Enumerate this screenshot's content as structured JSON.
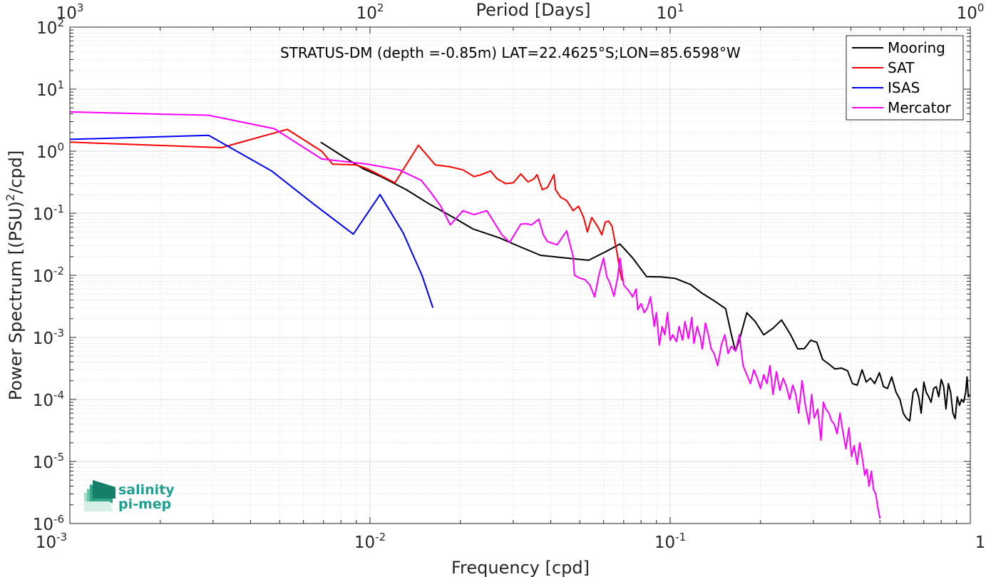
{
  "chart_data": {
    "type": "line",
    "scale": {
      "x": "log",
      "y": "log"
    },
    "xlabel": "Frequency [cpd]",
    "ylabel": "Power Spectrum [(PSU)²/cpd]",
    "ylabel_parts": {
      "pre": "Power Spectrum [(PSU)",
      "sup": "2",
      "post": "/cpd]"
    },
    "top_xlabel": "Period [Days]",
    "xlim": [
      0.001,
      1
    ],
    "ylim": [
      1e-06,
      100
    ],
    "grid": true,
    "minor_grid": true,
    "legend_position": "top-right",
    "annotation": "STRATUS-DM (depth =-0.85m) LAT=22.4625°S;LON=85.6598°W",
    "x_ticks": [
      {
        "value": 0.001,
        "base": "10",
        "exp": "-3"
      },
      {
        "value": 0.01,
        "base": "10",
        "exp": "-2"
      },
      {
        "value": 0.1,
        "base": "10",
        "exp": "-1"
      },
      {
        "value": 1,
        "base": "10",
        "exp": "0"
      }
    ],
    "top_ticks": [
      {
        "value": 0.001,
        "base": "10",
        "exp": "3"
      },
      {
        "value": 0.01,
        "base": "10",
        "exp": "2"
      },
      {
        "value": 0.1,
        "base": "10",
        "exp": "1"
      },
      {
        "value": 1,
        "base": "10",
        "exp": "0"
      }
    ],
    "y_ticks": [
      {
        "value": 100,
        "base": "10",
        "exp": "2"
      },
      {
        "value": 10,
        "base": "10",
        "exp": "1"
      },
      {
        "value": 1,
        "base": "10",
        "exp": "0"
      },
      {
        "value": 0.1,
        "base": "10",
        "exp": "-1"
      },
      {
        "value": 0.01,
        "base": "10",
        "exp": "-2"
      },
      {
        "value": 0.001,
        "base": "10",
        "exp": "-3"
      },
      {
        "value": 0.0001,
        "base": "10",
        "exp": "-4"
      },
      {
        "value": 1e-05,
        "base": "10",
        "exp": "-5"
      },
      {
        "value": 1e-06,
        "base": "10",
        "exp": "-6"
      }
    ],
    "series": [
      {
        "name": "Mooring",
        "color": "#000000",
        "points": [
          [
            0.00685,
            1.4
          ],
          [
            0.0082,
            0.8
          ],
          [
            0.0095,
            0.52
          ],
          [
            0.011,
            0.38
          ],
          [
            0.0132,
            0.24
          ],
          [
            0.0158,
            0.14
          ],
          [
            0.019,
            0.085
          ],
          [
            0.022,
            0.056
          ],
          [
            0.027,
            0.04
          ],
          [
            0.031,
            0.03
          ],
          [
            0.037,
            0.021
          ],
          [
            0.045,
            0.019
          ],
          [
            0.0535,
            0.0175
          ],
          [
            0.061,
            0.024
          ],
          [
            0.068,
            0.032
          ],
          [
            0.075,
            0.019
          ],
          [
            0.0835,
            0.0095
          ],
          [
            0.0935,
            0.0094
          ],
          [
            0.104,
            0.0089
          ],
          [
            0.117,
            0.0071
          ],
          [
            0.128,
            0.0051
          ],
          [
            0.14,
            0.0039
          ],
          [
            0.153,
            0.0029
          ],
          [
            0.16,
            0.0011
          ],
          [
            0.165,
            0.0006
          ],
          [
            0.17,
            0.0009
          ],
          [
            0.18,
            0.0025
          ],
          [
            0.192,
            0.0018
          ],
          [
            0.205,
            0.0011
          ],
          [
            0.22,
            0.0014
          ],
          [
            0.235,
            0.0019
          ],
          [
            0.252,
            0.0011
          ],
          [
            0.266,
            0.00065
          ],
          [
            0.28,
            0.00066
          ],
          [
            0.294,
            0.0009
          ],
          [
            0.308,
            0.00083
          ],
          [
            0.322,
            0.00044
          ],
          [
            0.338,
            0.00037
          ],
          [
            0.354,
            0.00031
          ],
          [
            0.372,
            0.00032
          ],
          [
            0.39,
            0.00029
          ],
          [
            0.405,
            0.00018
          ],
          [
            0.42,
            0.00017
          ],
          [
            0.436,
            0.0003
          ],
          [
            0.45,
            0.00019
          ],
          [
            0.465,
            0.00022
          ],
          [
            0.48,
            0.00018
          ],
          [
            0.498,
            0.00027
          ],
          [
            0.514,
            0.00016
          ],
          [
            0.53,
            0.00015
          ],
          [
            0.547,
            0.00023
          ],
          [
            0.566,
            0.00013
          ],
          [
            0.583,
            0.0001
          ],
          [
            0.598,
            6e-05
          ],
          [
            0.612,
            5e-05
          ],
          [
            0.628,
            4.5e-05
          ],
          [
            0.645,
            0.00013
          ],
          [
            0.66,
            0.00015
          ],
          [
            0.673,
            0.00011
          ],
          [
            0.686,
            6e-05
          ],
          [
            0.7,
            0.00019
          ],
          [
            0.713,
            0.00013
          ],
          [
            0.727,
            0.00011
          ],
          [
            0.74,
            9e-05
          ],
          [
            0.755,
            0.00015
          ],
          [
            0.77,
            0.00016
          ],
          [
            0.785,
            0.00011
          ],
          [
            0.8,
            0.00021
          ],
          [
            0.815,
            0.00016
          ],
          [
            0.83,
            7e-05
          ],
          [
            0.845,
            0.00018
          ],
          [
            0.86,
            0.00013
          ],
          [
            0.875,
            6e-05
          ],
          [
            0.89,
            4.9e-05
          ],
          [
            0.905,
            0.00011
          ],
          [
            0.92,
            8e-05
          ],
          [
            0.935,
            0.0001
          ],
          [
            0.95,
            9e-05
          ],
          [
            0.965,
            0.00013
          ],
          [
            0.975,
            0.00023
          ],
          [
            0.985,
            0.00011
          ],
          [
            1.0,
            0.00012
          ]
        ]
      },
      {
        "name": "SAT",
        "color": "#ff0000",
        "points": [
          [
            0.001,
            1.4
          ],
          [
            0.0032,
            1.14
          ],
          [
            0.0053,
            2.25
          ],
          [
            0.0069,
            1.0
          ],
          [
            0.0075,
            0.62
          ],
          [
            0.009,
            0.6
          ],
          [
            0.0098,
            0.52
          ],
          [
            0.0121,
            0.31
          ],
          [
            0.0138,
            0.85
          ],
          [
            0.0145,
            1.25
          ],
          [
            0.0165,
            0.6
          ],
          [
            0.0185,
            0.56
          ],
          [
            0.0204,
            0.5
          ],
          [
            0.0222,
            0.39
          ],
          [
            0.0235,
            0.42
          ],
          [
            0.0252,
            0.48
          ],
          [
            0.0265,
            0.36
          ],
          [
            0.0283,
            0.3
          ],
          [
            0.03,
            0.31
          ],
          [
            0.0318,
            0.43
          ],
          [
            0.0336,
            0.32
          ],
          [
            0.0352,
            0.36
          ],
          [
            0.036,
            0.42
          ],
          [
            0.0375,
            0.24
          ],
          [
            0.039,
            0.26
          ],
          [
            0.041,
            0.42
          ],
          [
            0.0415,
            0.24
          ],
          [
            0.0432,
            0.18
          ],
          [
            0.0452,
            0.16
          ],
          [
            0.0475,
            0.11
          ],
          [
            0.0495,
            0.13
          ],
          [
            0.0515,
            0.085
          ],
          [
            0.053,
            0.05
          ],
          [
            0.0548,
            0.085
          ],
          [
            0.0575,
            0.06
          ],
          [
            0.0592,
            0.045
          ],
          [
            0.0608,
            0.072
          ],
          [
            0.0623,
            0.075
          ],
          [
            0.064,
            0.062
          ],
          [
            0.0663,
            0.025
          ],
          [
            0.068,
            0.012
          ],
          [
            0.069,
            0.0085
          ],
          [
            0.07,
            0.008
          ]
        ]
      },
      {
        "name": "ISAS",
        "color": "#0000ff",
        "points": [
          [
            0.001,
            1.55
          ],
          [
            0.0029,
            1.8
          ],
          [
            0.0047,
            0.48
          ],
          [
            0.0065,
            0.14
          ],
          [
            0.0088,
            0.046
          ],
          [
            0.0108,
            0.2
          ],
          [
            0.0129,
            0.048
          ],
          [
            0.0149,
            0.01
          ],
          [
            0.0162,
            0.003
          ]
        ]
      },
      {
        "name": "Mercator",
        "color": "#ff00ff",
        "points": [
          [
            0.001,
            4.3
          ],
          [
            0.0029,
            3.8
          ],
          [
            0.0048,
            2.3
          ],
          [
            0.0069,
            0.75
          ],
          [
            0.0098,
            0.62
          ],
          [
            0.0125,
            0.5
          ],
          [
            0.0148,
            0.34
          ],
          [
            0.0158,
            0.23
          ],
          [
            0.0172,
            0.13
          ],
          [
            0.0185,
            0.065
          ],
          [
            0.0204,
            0.11
          ],
          [
            0.0222,
            0.095
          ],
          [
            0.0245,
            0.11
          ],
          [
            0.0275,
            0.045
          ],
          [
            0.0292,
            0.034
          ],
          [
            0.0318,
            0.067
          ],
          [
            0.0332,
            0.068
          ],
          [
            0.0345,
            0.065
          ],
          [
            0.0365,
            0.08
          ],
          [
            0.0378,
            0.045
          ],
          [
            0.039,
            0.035
          ],
          [
            0.042,
            0.031
          ],
          [
            0.0452,
            0.052
          ],
          [
            0.0475,
            0.02
          ],
          [
            0.048,
            0.01
          ],
          [
            0.05,
            0.009
          ],
          [
            0.052,
            0.0085
          ],
          [
            0.054,
            0.007
          ],
          [
            0.056,
            0.0045
          ],
          [
            0.058,
            0.0105
          ],
          [
            0.06,
            0.019
          ],
          [
            0.0615,
            0.0095
          ],
          [
            0.063,
            0.0075
          ],
          [
            0.065,
            0.0046
          ],
          [
            0.067,
            0.01
          ],
          [
            0.068,
            0.019
          ],
          [
            0.07,
            0.007
          ],
          [
            0.073,
            0.0055
          ],
          [
            0.075,
            0.0045
          ],
          [
            0.077,
            0.006
          ],
          [
            0.078,
            0.0028
          ],
          [
            0.08,
            0.0035
          ],
          [
            0.082,
            0.0025
          ],
          [
            0.084,
            0.003
          ],
          [
            0.086,
            0.0045
          ],
          [
            0.0885,
            0.0015
          ],
          [
            0.09,
            0.0025
          ],
          [
            0.092,
            0.00075
          ],
          [
            0.094,
            0.0015
          ],
          [
            0.096,
            0.0011
          ],
          [
            0.098,
            0.0025
          ],
          [
            0.1,
            0.0009
          ],
          [
            0.102,
            0.0011
          ],
          [
            0.105,
            0.00085
          ],
          [
            0.107,
            0.0015
          ],
          [
            0.11,
            0.0009
          ],
          [
            0.112,
            0.0018
          ],
          [
            0.115,
            0.00095
          ],
          [
            0.118,
            0.0021
          ],
          [
            0.12,
            0.0008
          ],
          [
            0.123,
            0.0015
          ],
          [
            0.126,
            0.001
          ],
          [
            0.128,
            0.00065
          ],
          [
            0.131,
            0.0017
          ],
          [
            0.134,
            0.0011
          ],
          [
            0.137,
            0.00065
          ],
          [
            0.14,
            0.00055
          ],
          [
            0.144,
            0.00035
          ],
          [
            0.148,
            0.00075
          ],
          [
            0.152,
            0.0011
          ],
          [
            0.156,
            0.00055
          ],
          [
            0.16,
            0.00072
          ],
          [
            0.165,
            0.0006
          ],
          [
            0.17,
            0.0011
          ],
          [
            0.175,
            0.00035
          ],
          [
            0.18,
            0.00025
          ],
          [
            0.185,
            0.00018
          ],
          [
            0.19,
            0.0003
          ],
          [
            0.195,
            0.00022
          ],
          [
            0.2,
            0.00015
          ],
          [
            0.205,
            0.00025
          ],
          [
            0.21,
            0.00018
          ],
          [
            0.215,
            0.00035
          ],
          [
            0.22,
            0.00012
          ],
          [
            0.226,
            0.00028
          ],
          [
            0.232,
            0.00014
          ],
          [
            0.238,
            0.00022
          ],
          [
            0.244,
            0.00016
          ],
          [
            0.25,
            0.0001
          ],
          [
            0.256,
            0.00017
          ],
          [
            0.262,
            0.00012
          ],
          [
            0.268,
            6e-05
          ],
          [
            0.275,
            0.0002
          ],
          [
            0.282,
            8e-05
          ],
          [
            0.29,
            4e-05
          ],
          [
            0.296,
            0.00012
          ],
          [
            0.302,
            5e-05
          ],
          [
            0.31,
            7e-05
          ],
          [
            0.318,
            2.2e-05
          ],
          [
            0.324,
            9e-05
          ],
          [
            0.33,
            7e-05
          ],
          [
            0.338,
            6e-05
          ],
          [
            0.345,
            4.5e-05
          ],
          [
            0.352,
            4e-05
          ],
          [
            0.36,
            2.8e-05
          ],
          [
            0.368,
            6e-05
          ],
          [
            0.376,
            3e-05
          ],
          [
            0.385,
            1.6e-05
          ],
          [
            0.394,
            3.5e-05
          ],
          [
            0.402,
            1.2e-05
          ],
          [
            0.41,
            1.8e-05
          ],
          [
            0.42,
            9e-06
          ],
          [
            0.428,
            2e-05
          ],
          [
            0.436,
            1.2e-05
          ],
          [
            0.445,
            6e-06
          ],
          [
            0.452,
            7.5e-06
          ],
          [
            0.46,
            4e-06
          ],
          [
            0.468,
            7e-06
          ],
          [
            0.476,
            3.5e-06
          ],
          [
            0.484,
            3e-06
          ],
          [
            0.492,
            1.8e-06
          ],
          [
            0.5,
            1.2e-06
          ]
        ]
      }
    ]
  },
  "logo": {
    "line1": "salinity",
    "line2": "pi-mep",
    "color": "#1f9f8f"
  }
}
